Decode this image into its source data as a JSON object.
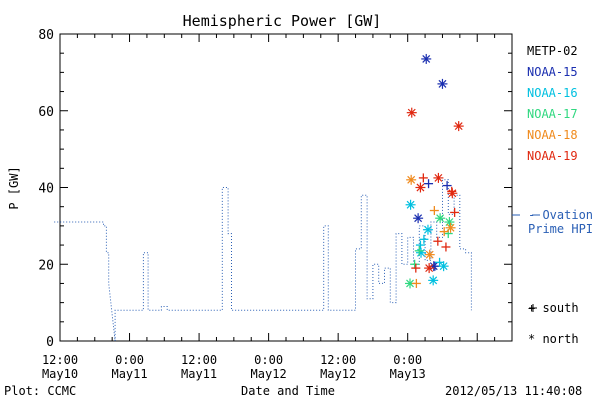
{
  "chart_data": {
    "type": "line",
    "title": "Hemispheric Power [GW]",
    "xlabel": "Date and Time",
    "ylabel": "P [GW]",
    "ylim": [
      0,
      80
    ],
    "y_ticks": [
      0,
      20,
      40,
      60,
      80
    ],
    "xlim_hours": [
      0,
      78
    ],
    "x_ticks": [
      {
        "t": 0,
        "time": "12:00",
        "day": "May10"
      },
      {
        "t": 12,
        "time": "0:00",
        "day": "May11"
      },
      {
        "t": 24,
        "time": "12:00",
        "day": "May11"
      },
      {
        "t": 36,
        "time": "0:00",
        "day": "May12"
      },
      {
        "t": 48,
        "time": "12:00",
        "day": "May12"
      },
      {
        "t": 60,
        "time": "0:00",
        "day": "May13"
      }
    ],
    "series": [
      {
        "name": "Ovation Prime HPI",
        "color": "#2a5fb5",
        "style": "dotted-step",
        "points": [
          [
            -1,
            31
          ],
          [
            7.5,
            31
          ],
          [
            7.5,
            30
          ],
          [
            8,
            30
          ],
          [
            8,
            23
          ],
          [
            8.4,
            23
          ],
          [
            8.4,
            15
          ],
          [
            9.5,
            0
          ],
          [
            9.5,
            8
          ],
          [
            14.4,
            8
          ],
          [
            14.4,
            23
          ],
          [
            15.2,
            23
          ],
          [
            15.2,
            8
          ],
          [
            17.5,
            8
          ],
          [
            17.5,
            9
          ],
          [
            18.5,
            9
          ],
          [
            18.5,
            8
          ],
          [
            28,
            8
          ],
          [
            28,
            40
          ],
          [
            29,
            40
          ],
          [
            29,
            28
          ],
          [
            29.6,
            28
          ],
          [
            29.6,
            8
          ],
          [
            45.5,
            8
          ],
          [
            45.5,
            30
          ],
          [
            46.3,
            30
          ],
          [
            46.3,
            8
          ],
          [
            51,
            8
          ],
          [
            51,
            24
          ],
          [
            52,
            24
          ],
          [
            52,
            38
          ],
          [
            53,
            38
          ],
          [
            53,
            11
          ],
          [
            54,
            11
          ],
          [
            54,
            20
          ],
          [
            55,
            20
          ],
          [
            55,
            15
          ],
          [
            56,
            15
          ],
          [
            56,
            19
          ],
          [
            57,
            19
          ],
          [
            57,
            10
          ],
          [
            58,
            10
          ],
          [
            58,
            28
          ],
          [
            59,
            28
          ],
          [
            59,
            20
          ],
          [
            60,
            20
          ],
          [
            60,
            27
          ],
          [
            61,
            27
          ],
          [
            61,
            20
          ],
          [
            62,
            20
          ],
          [
            62,
            30
          ],
          [
            63,
            30
          ],
          [
            63,
            21
          ],
          [
            64,
            21
          ],
          [
            64,
            31
          ],
          [
            65,
            31
          ],
          [
            65,
            27
          ],
          [
            66,
            27
          ],
          [
            66,
            42
          ],
          [
            67,
            42
          ],
          [
            67,
            33
          ],
          [
            68,
            33
          ],
          [
            68,
            38
          ],
          [
            69,
            38
          ],
          [
            69,
            24
          ],
          [
            70,
            24
          ],
          [
            70,
            23
          ],
          [
            71,
            23
          ],
          [
            71,
            8
          ]
        ]
      },
      {
        "name": "METP-02",
        "color": "#000000",
        "south": [],
        "north": []
      },
      {
        "name": "NOAA-15",
        "color": "#1b2fb0",
        "south": [
          [
            63.6,
            41
          ],
          [
            64.7,
            19.5
          ],
          [
            66.8,
            40.5
          ]
        ],
        "north": [
          [
            61.8,
            32
          ],
          [
            63.2,
            73.5
          ],
          [
            66.0,
            67
          ],
          [
            64.5,
            19.5
          ]
        ]
      },
      {
        "name": "NOAA-16",
        "color": "#00c0e0",
        "south": [
          [
            62.2,
            25
          ],
          [
            62.8,
            26.5
          ],
          [
            65.5,
            20.5
          ]
        ],
        "north": [
          [
            60.5,
            35.5
          ],
          [
            62.3,
            23
          ],
          [
            63.5,
            29
          ],
          [
            64.4,
            15.8
          ],
          [
            66.2,
            19.5
          ]
        ]
      },
      {
        "name": "NOAA-17",
        "color": "#30d880",
        "south": [
          [
            61.2,
            20
          ],
          [
            62.0,
            23.5
          ],
          [
            67.0,
            28
          ]
        ],
        "north": [
          [
            60.4,
            15
          ],
          [
            65.6,
            32
          ],
          [
            67.2,
            31
          ]
        ]
      },
      {
        "name": "NOAA-18",
        "color": "#f08a1c",
        "south": [
          [
            61.5,
            15
          ],
          [
            64.6,
            34
          ],
          [
            66.3,
            28.5
          ]
        ],
        "north": [
          [
            60.6,
            42
          ],
          [
            63.8,
            22.5
          ],
          [
            67.4,
            29.5
          ]
        ]
      },
      {
        "name": "NOAA-19",
        "color": "#e02810",
        "south": [
          [
            61.4,
            19
          ],
          [
            62.7,
            42.5
          ],
          [
            65.2,
            26
          ],
          [
            66.6,
            24.5
          ],
          [
            67.6,
            39
          ],
          [
            68.1,
            33.5
          ]
        ],
        "north": [
          [
            60.7,
            59.5
          ],
          [
            62.2,
            40
          ],
          [
            63.7,
            19
          ],
          [
            65.3,
            42.5
          ],
          [
            67.7,
            38.5
          ],
          [
            68.8,
            56
          ]
        ]
      }
    ],
    "legend": {
      "items": [
        "METP-02",
        "NOAA-15",
        "NOAA-16",
        "NOAA-17",
        "NOAA-18",
        "NOAA-19"
      ],
      "hpi_label_line1": "- Ovation",
      "hpi_label_line2": "Prime HPI",
      "south_label": "+ south",
      "north_label": "* north"
    },
    "footer_left": "Plot: CCMC",
    "footer_right": "2012/05/13 11:40:08"
  }
}
